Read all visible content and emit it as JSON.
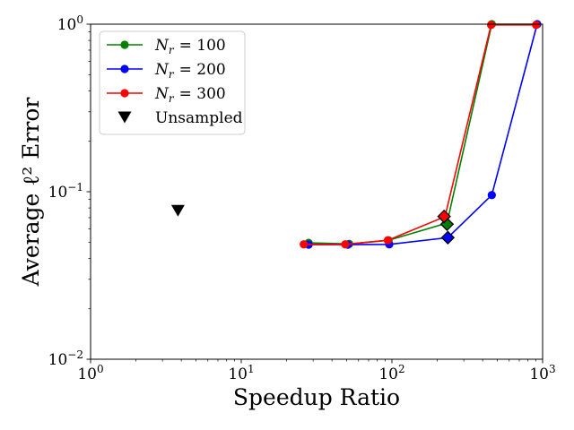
{
  "chart_data": {
    "type": "line",
    "xscale": "log",
    "yscale": "log",
    "xlim": [
      1,
      1000
    ],
    "ylim": [
      0.01,
      1
    ],
    "xlabel": "Speedup Ratio",
    "ylabel": "Average ℓ² Error",
    "x_tick_labels": [
      {
        "value": 1,
        "base": "10",
        "exp": "0"
      },
      {
        "value": 10,
        "base": "10",
        "exp": "1"
      },
      {
        "value": 100,
        "base": "10",
        "exp": "2"
      },
      {
        "value": 1000,
        "base": "10",
        "exp": "3"
      }
    ],
    "y_tick_labels": [
      {
        "value": 0.01,
        "base": "10",
        "exp": "−2"
      },
      {
        "value": 0.1,
        "base": "10",
        "exp": "−1"
      },
      {
        "value": 1,
        "base": "10",
        "exp": "0"
      }
    ],
    "legend_position": "top-left",
    "series": [
      {
        "name": "Nr = 100",
        "legend_sub": "r",
        "legend_value": "= 100",
        "color": "#008000",
        "points": [
          [
            28,
            0.0495
          ],
          [
            52,
            0.0488
          ],
          [
            95,
            0.0513
          ],
          [
            232,
            0.065
          ],
          [
            460,
            1.0
          ],
          [
            920,
            1.0
          ]
        ],
        "diamond": [
          232,
          0.064
        ]
      },
      {
        "name": "Nr = 200",
        "legend_sub": "r",
        "legend_value": "= 200",
        "color": "#0000ff",
        "points": [
          [
            28,
            0.0483
          ],
          [
            51,
            0.0483
          ],
          [
            96,
            0.0485
          ],
          [
            235,
            0.0532
          ],
          [
            460,
            0.0955
          ],
          [
            920,
            1.0
          ]
        ],
        "diamond": [
          235,
          0.0532
        ]
      },
      {
        "name": "Nr = 300",
        "legend_sub": "r",
        "legend_value": "= 300",
        "color": "#ff0000",
        "points": [
          [
            26,
            0.0485
          ],
          [
            49,
            0.0485
          ],
          [
            94,
            0.0513
          ],
          [
            225,
            0.071
          ],
          [
            455,
            0.99
          ],
          [
            905,
            0.99
          ]
        ],
        "diamond": [
          222,
          0.0712
        ]
      }
    ],
    "unsampled": {
      "name": "Unsampled",
      "color": "#000000",
      "point": [
        3.8,
        0.077
      ]
    }
  }
}
